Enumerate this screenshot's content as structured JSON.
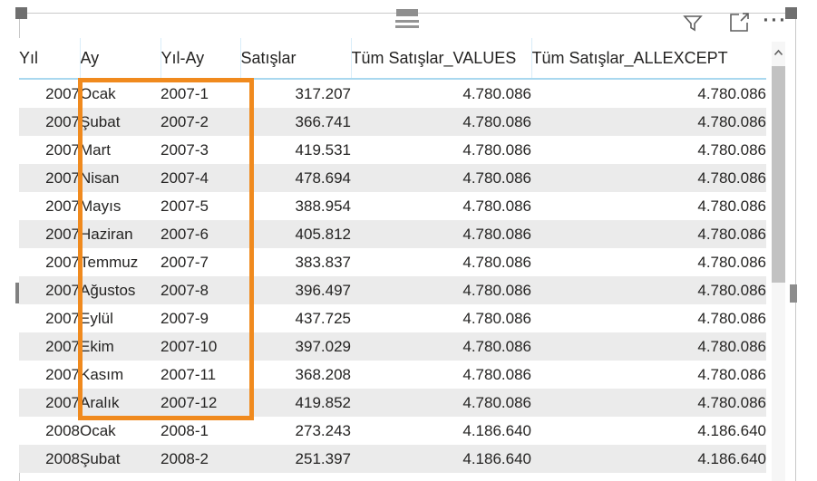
{
  "chrome": {
    "drag_handle_icon": "grip-lines",
    "filter_icon": "funnel",
    "focus_mode_icon": "expand-box-arrow",
    "more_options_icon": "···",
    "scroll_up_icon": "chevron-up"
  },
  "table": {
    "columns": [
      "Yıl",
      "Ay",
      "Yıl-Ay",
      "Satışlar",
      "Tüm Satışlar_VALUES",
      "Tüm Satışlar_ALLEXCEPT"
    ],
    "column_ids": [
      "yil",
      "ay",
      "yil-ay",
      "satislar",
      "tum-satislar-values",
      "tum-satislar-allexcept"
    ],
    "rows": [
      [
        "2007",
        "Ocak",
        "2007-1",
        "317.207",
        "4.780.086",
        "4.780.086"
      ],
      [
        "2007",
        "Şubat",
        "2007-2",
        "366.741",
        "4.780.086",
        "4.780.086"
      ],
      [
        "2007",
        "Mart",
        "2007-3",
        "419.531",
        "4.780.086",
        "4.780.086"
      ],
      [
        "2007",
        "Nisan",
        "2007-4",
        "478.694",
        "4.780.086",
        "4.780.086"
      ],
      [
        "2007",
        "Mayıs",
        "2007-5",
        "388.954",
        "4.780.086",
        "4.780.086"
      ],
      [
        "2007",
        "Haziran",
        "2007-6",
        "405.812",
        "4.780.086",
        "4.780.086"
      ],
      [
        "2007",
        "Temmuz",
        "2007-7",
        "383.837",
        "4.780.086",
        "4.780.086"
      ],
      [
        "2007",
        "Ağustos",
        "2007-8",
        "396.497",
        "4.780.086",
        "4.780.086"
      ],
      [
        "2007",
        "Eylül",
        "2007-9",
        "437.725",
        "4.780.086",
        "4.780.086"
      ],
      [
        "2007",
        "Ekim",
        "2007-10",
        "397.029",
        "4.780.086",
        "4.780.086"
      ],
      [
        "2007",
        "Kasım",
        "2007-11",
        "368.208",
        "4.780.086",
        "4.780.086"
      ],
      [
        "2007",
        "Aralık",
        "2007-12",
        "419.852",
        "4.780.086",
        "4.780.086"
      ],
      [
        "2008",
        "Ocak",
        "2008-1",
        "273.243",
        "4.186.640",
        "4.186.640"
      ],
      [
        "2008",
        "Şubat",
        "2008-2",
        "251.397",
        "4.186.640",
        "4.186.640"
      ]
    ]
  },
  "highlight": {
    "color": "#F08A1E",
    "covers_columns": [
      "Ay",
      "Yıl-Ay"
    ]
  },
  "colors": {
    "header_underline": "#A9D8EF",
    "row_stripe": "#EBEBEB",
    "text": "#252423",
    "chrome_gray": "#8F8F8F",
    "scroll_thumb": "#C2C2C2"
  }
}
